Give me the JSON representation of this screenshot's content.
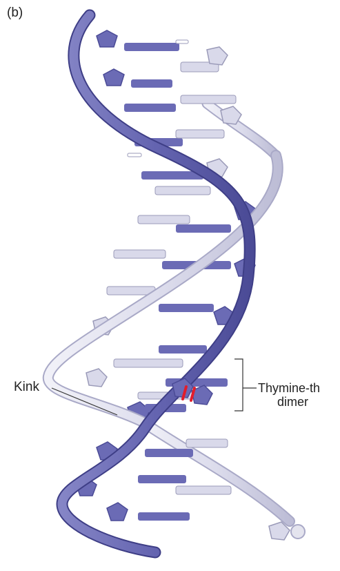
{
  "figure": {
    "panel_label": "(b)",
    "callouts": {
      "kink": "Kink",
      "thymine_dimer_line1": "Thymine-th",
      "thymine_dimer_line2": "dimer"
    },
    "colors": {
      "strand_dark": "#6b6bb5",
      "strand_light": "#d9d9ea",
      "dimer_bond": "#e21d2b",
      "background": "#ffffff"
    }
  }
}
